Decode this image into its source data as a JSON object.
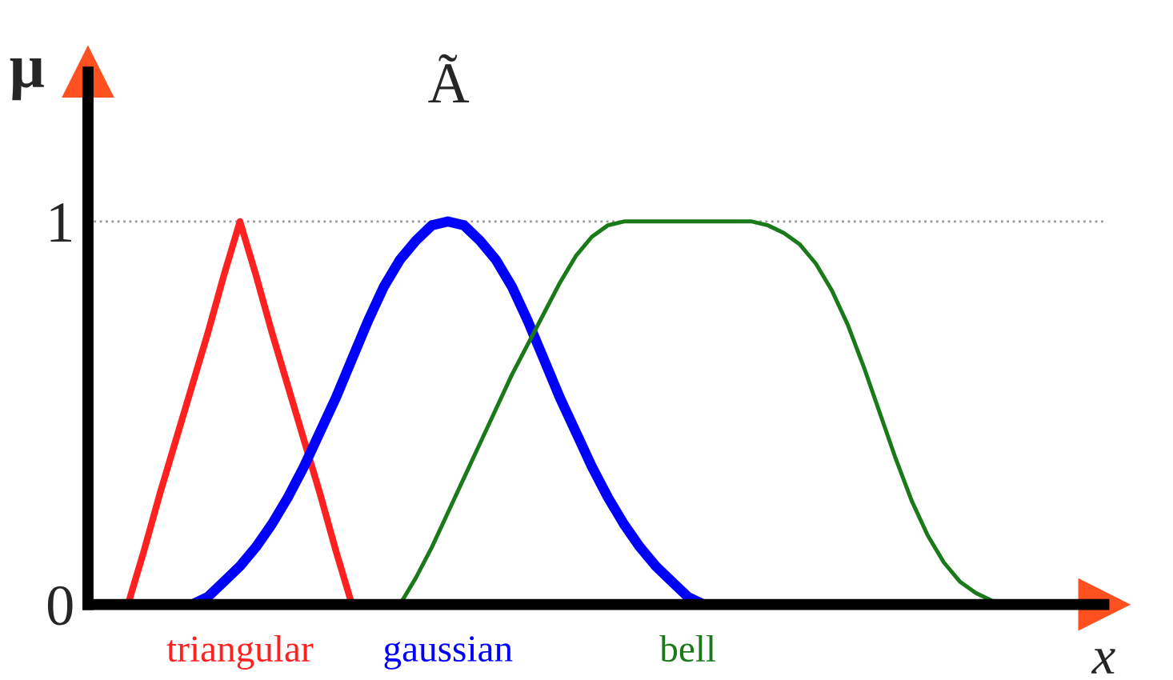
{
  "chart_data": {
    "type": "line",
    "xlabel": "x",
    "ylabel": "μ",
    "annotations": [
      "Ã"
    ],
    "categories": [
      null,
      null,
      null,
      null,
      null,
      null,
      null,
      null,
      null,
      null,
      null,
      null,
      null,
      null,
      null,
      null,
      null,
      null,
      null,
      null,
      null,
      null,
      null,
      null,
      null,
      null,
      null,
      null,
      null,
      null,
      null,
      null,
      null,
      null,
      null,
      null,
      null,
      null,
      null,
      null,
      null,
      null,
      null,
      null,
      null,
      null,
      null,
      null,
      null,
      null,
      null,
      null,
      null,
      null,
      null,
      null
    ],
    "series": [
      {
        "name": "triangular",
        "color": "#ff2020",
        "values": [
          0,
          0.14,
          0.29,
          0.43,
          0.57,
          0.71,
          0.86,
          1,
          0.86,
          0.71,
          0.57,
          0.43,
          0.29,
          0.14,
          0,
          null,
          null,
          null,
          null,
          null,
          null,
          null,
          null,
          null,
          null,
          null,
          null,
          null,
          null,
          null,
          null,
          null,
          null,
          null,
          null,
          null,
          null,
          null,
          null,
          null,
          null,
          null,
          null,
          null,
          null,
          null,
          null,
          null,
          null,
          null,
          null,
          null,
          null,
          null,
          null,
          null
        ]
      },
      {
        "name": "gaussian",
        "color": "#0000ff",
        "values": [
          null,
          null,
          null,
          null,
          0,
          0.02,
          0.06,
          0.1,
          0.15,
          0.21,
          0.28,
          0.36,
          0.45,
          0.54,
          0.64,
          0.74,
          0.83,
          0.9,
          0.95,
          0.99,
          1,
          0.99,
          0.95,
          0.9,
          0.83,
          0.74,
          0.64,
          0.54,
          0.45,
          0.36,
          0.28,
          0.21,
          0.15,
          0.1,
          0.06,
          0.02,
          0,
          null,
          null,
          null,
          null,
          null,
          null,
          null,
          null,
          null,
          null,
          null,
          null,
          null,
          null,
          null,
          null,
          null,
          null,
          null
        ]
      },
      {
        "name": "bell",
        "color": "#1a7a1a",
        "values": [
          null,
          null,
          null,
          null,
          null,
          null,
          null,
          null,
          null,
          null,
          null,
          null,
          null,
          null,
          null,
          null,
          null,
          0,
          0.07,
          0.15,
          0.24,
          0.33,
          0.42,
          0.51,
          0.6,
          0.68,
          0.76,
          0.84,
          0.91,
          0.96,
          0.99,
          1,
          1,
          1,
          1,
          1,
          1,
          1,
          1,
          1,
          0.99,
          0.97,
          0.94,
          0.89,
          0.82,
          0.73,
          0.62,
          0.5,
          0.38,
          0.27,
          0.18,
          0.11,
          0.06,
          0.03,
          0.01,
          0
        ]
      }
    ],
    "ylim": [
      0,
      1.39
    ],
    "yticks": [
      0,
      1
    ],
    "ref_lines": [
      {
        "axis": "y",
        "value": 1,
        "color": "#999999",
        "line_style": "dotted"
      }
    ],
    "grid": false,
    "legend": false,
    "marker": "none",
    "line_style": "solid"
  }
}
